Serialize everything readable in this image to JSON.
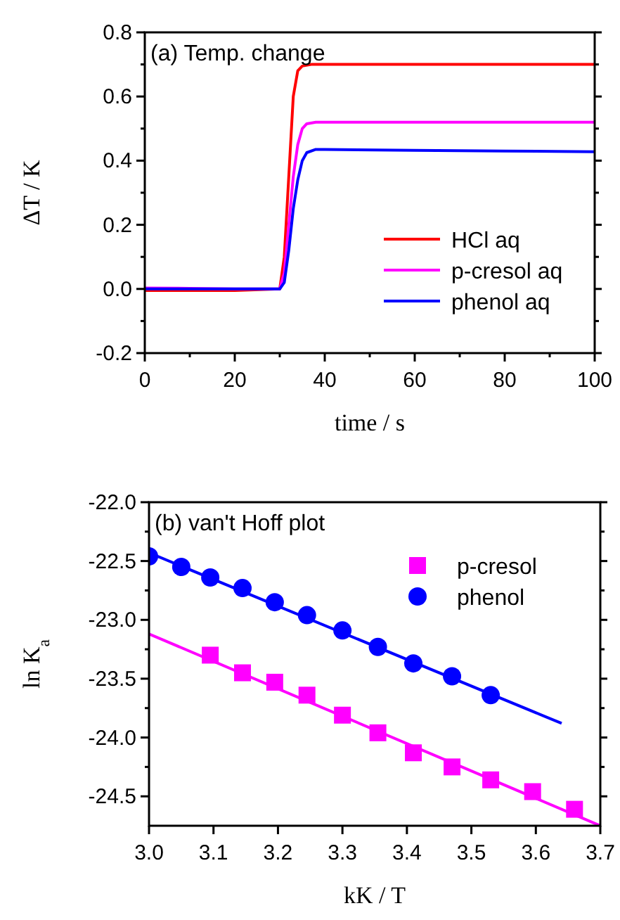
{
  "chart_data": [
    {
      "type": "line",
      "annotations": [
        "(a) Temp. change"
      ],
      "xlabel": "time / s",
      "ylabel": "ΔT / K",
      "xlim": [
        0,
        100
      ],
      "ylim": [
        -0.2,
        0.8
      ],
      "xticks": [
        0,
        {
          "value": 10,
          "label": null
        },
        20,
        {
          "value": 30,
          "label": null
        },
        40,
        {
          "value": 50,
          "label": null
        },
        60,
        {
          "value": 70,
          "label": null
        },
        80,
        {
          "value": 90,
          "label": null
        },
        100
      ],
      "yticks": [
        {
          "value": -0.2,
          "label": "-0.2"
        },
        {
          "value": -0.1,
          "label": null
        },
        {
          "value": 0,
          "label": "0.0"
        },
        {
          "value": 0.1,
          "label": null
        },
        {
          "value": 0.2,
          "label": "0.2"
        },
        {
          "value": 0.3,
          "label": null
        },
        {
          "value": 0.4,
          "label": "0.4"
        },
        {
          "value": 0.5,
          "label": null
        },
        {
          "value": 0.6,
          "label": "0.6"
        },
        {
          "value": 0.7,
          "label": null
        },
        {
          "value": 0.8,
          "label": "0.8"
        }
      ],
      "legend": "bottom right",
      "grid": false,
      "line_style": "solid",
      "series": [
        {
          "name": "HCl aq",
          "color": "#ff0000",
          "x": [
            0,
            10,
            20,
            30,
            31,
            32,
            33,
            34,
            35,
            37,
            40,
            60,
            80,
            100
          ],
          "values": [
            -0.005,
            -0.005,
            -0.005,
            0,
            0.1,
            0.35,
            0.6,
            0.68,
            0.695,
            0.7,
            0.7,
            0.7,
            0.7,
            0.7
          ]
        },
        {
          "name": "p-cresol aq",
          "color": "#ff00ff",
          "x": [
            0,
            10,
            20,
            30,
            31,
            32,
            33,
            34,
            35,
            36,
            38,
            60,
            80,
            100
          ],
          "values": [
            0.003,
            0.002,
            0,
            0,
            0.05,
            0.2,
            0.35,
            0.45,
            0.5,
            0.515,
            0.52,
            0.52,
            0.52,
            0.52
          ]
        },
        {
          "name": "phenol aq",
          "color": "#0000ff",
          "x": [
            0,
            10,
            20,
            30,
            31,
            32,
            33,
            34,
            35,
            36,
            38,
            40,
            60,
            80,
            100
          ],
          "values": [
            0,
            0,
            0,
            0,
            0.02,
            0.12,
            0.25,
            0.34,
            0.4,
            0.425,
            0.435,
            0.435,
            0.432,
            0.43,
            0.428
          ]
        }
      ]
    },
    {
      "type": "scatter",
      "annotations": [
        "(b) van't Hoff plot"
      ],
      "xlabel": "kK / T",
      "ylabel": "ln K$_{a}$",
      "xlim": [
        3.0,
        3.7
      ],
      "ylim": [
        -24.75,
        -22.0
      ],
      "xticks": [
        {
          "value": 3.0,
          "label": "3.0"
        },
        3.1,
        3.2,
        3.3,
        3.4,
        3.5,
        3.6,
        3.7
      ],
      "yticks": [
        {
          "value": -24.5,
          "label": "-24.5"
        },
        {
          "value": -24.25,
          "label": null
        },
        {
          "value": -24.0,
          "label": "-24.0"
        },
        {
          "value": -23.75,
          "label": null
        },
        {
          "value": -23.5,
          "label": "-23.5"
        },
        {
          "value": -23.25,
          "label": null
        },
        {
          "value": -23.0,
          "label": "-23.0"
        },
        {
          "value": -22.75,
          "label": null
        },
        {
          "value": -22.5,
          "label": "-22.5"
        },
        {
          "value": -22.25,
          "label": null
        },
        {
          "value": -22.0,
          "label": "-22.0"
        }
      ],
      "legend": "top right",
      "grid": false,
      "series": [
        {
          "name": "p-cresol",
          "color": "#ff00ff",
          "marker": "square",
          "x": [
            3.095,
            3.145,
            3.195,
            3.245,
            3.3,
            3.355,
            3.41,
            3.47,
            3.53,
            3.595,
            3.66
          ],
          "values": [
            -23.3,
            -23.45,
            -23.53,
            -23.64,
            -23.81,
            -23.96,
            -24.13,
            -24.25,
            -24.36,
            -24.46,
            -24.61
          ]
        },
        {
          "name": "phenol",
          "color": "#0000ff",
          "marker": "circle",
          "x": [
            3.0,
            3.05,
            3.095,
            3.145,
            3.195,
            3.245,
            3.3,
            3.355,
            3.41,
            3.47,
            3.53
          ],
          "values": [
            -22.46,
            -22.55,
            -22.64,
            -22.73,
            -22.85,
            -22.96,
            -23.09,
            -23.23,
            -23.37,
            -23.48,
            -23.64
          ]
        },
        {
          "type": "line",
          "color": "#ff00ff",
          "x": [
            3.0,
            3.7
          ],
          "values": [
            -23.12,
            -24.75
          ]
        },
        {
          "type": "line",
          "color": "#0000ff",
          "x": [
            3.0,
            3.64
          ],
          "values": [
            -22.43,
            -23.88
          ]
        }
      ]
    }
  ]
}
